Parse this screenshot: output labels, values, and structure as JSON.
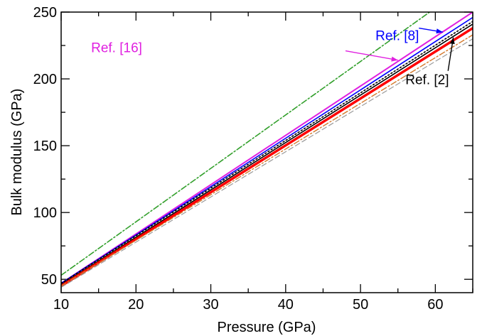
{
  "chart_data": {
    "type": "line",
    "xlabel": "Pressure (GPa)",
    "ylabel": "Bulk modulus (GPa)",
    "xlim": [
      10,
      65
    ],
    "ylim": [
      40,
      250
    ],
    "x_ticks": [
      10,
      20,
      30,
      40,
      50,
      60
    ],
    "y_ticks": [
      50,
      100,
      150,
      200,
      250
    ],
    "x_minor_step": 5,
    "y_minor_step": 25,
    "grid": false,
    "series": [
      {
        "x": [
          10,
          65
        ],
        "y": [
          53,
          273
        ],
        "color": "#33a02c",
        "style": "dashdot",
        "width": 1.6
      },
      {
        "x": [
          10,
          65
        ],
        "y": [
          47,
          250
        ],
        "color": "#e020e0",
        "style": "solid",
        "width": 2
      },
      {
        "name": "Ref. [8]",
        "x": [
          10,
          65
        ],
        "y": [
          47,
          246
        ],
        "color": "#0000ff",
        "style": "solid",
        "width": 1.6
      },
      {
        "x": [
          10,
          65
        ],
        "y": [
          47,
          243
        ],
        "color": "#000000",
        "style": "dotted",
        "width": 1.6
      },
      {
        "name": "Ref. [2]",
        "x": [
          10,
          65
        ],
        "y": [
          46,
          241
        ],
        "color": "#000000",
        "style": "solid",
        "width": 1.6
      },
      {
        "x": [
          10,
          65
        ],
        "y": [
          45,
          238
        ],
        "color": "#ff0000",
        "style": "solid",
        "width": 3.5
      },
      {
        "x": [
          10,
          65
        ],
        "y": [
          45,
          233
        ],
        "color": "#d4782a",
        "style": "dashdot",
        "width": 1.4
      },
      {
        "x": [
          10,
          65
        ],
        "y": [
          44,
          230
        ],
        "color": "#9a9a9a",
        "style": "dashed",
        "width": 1.2
      }
    ],
    "annotations": [
      {
        "text": "Ref. [16]",
        "color": "#e020e0",
        "x": 14,
        "y": 220,
        "arrow_from": [
          48,
          221
        ],
        "arrow_to": [
          55,
          214
        ]
      },
      {
        "text": "Ref. [8]",
        "color": "#0000ff",
        "x": 52,
        "y": 229,
        "arrow_from": [
          57.8,
          238
        ],
        "arrow_to": [
          61,
          235
        ]
      },
      {
        "text": "Ref. [2]",
        "color": "#000000",
        "x": 56,
        "y": 196,
        "arrow_from": [
          61.7,
          206
        ],
        "arrow_to": [
          62.4,
          231
        ]
      }
    ]
  }
}
